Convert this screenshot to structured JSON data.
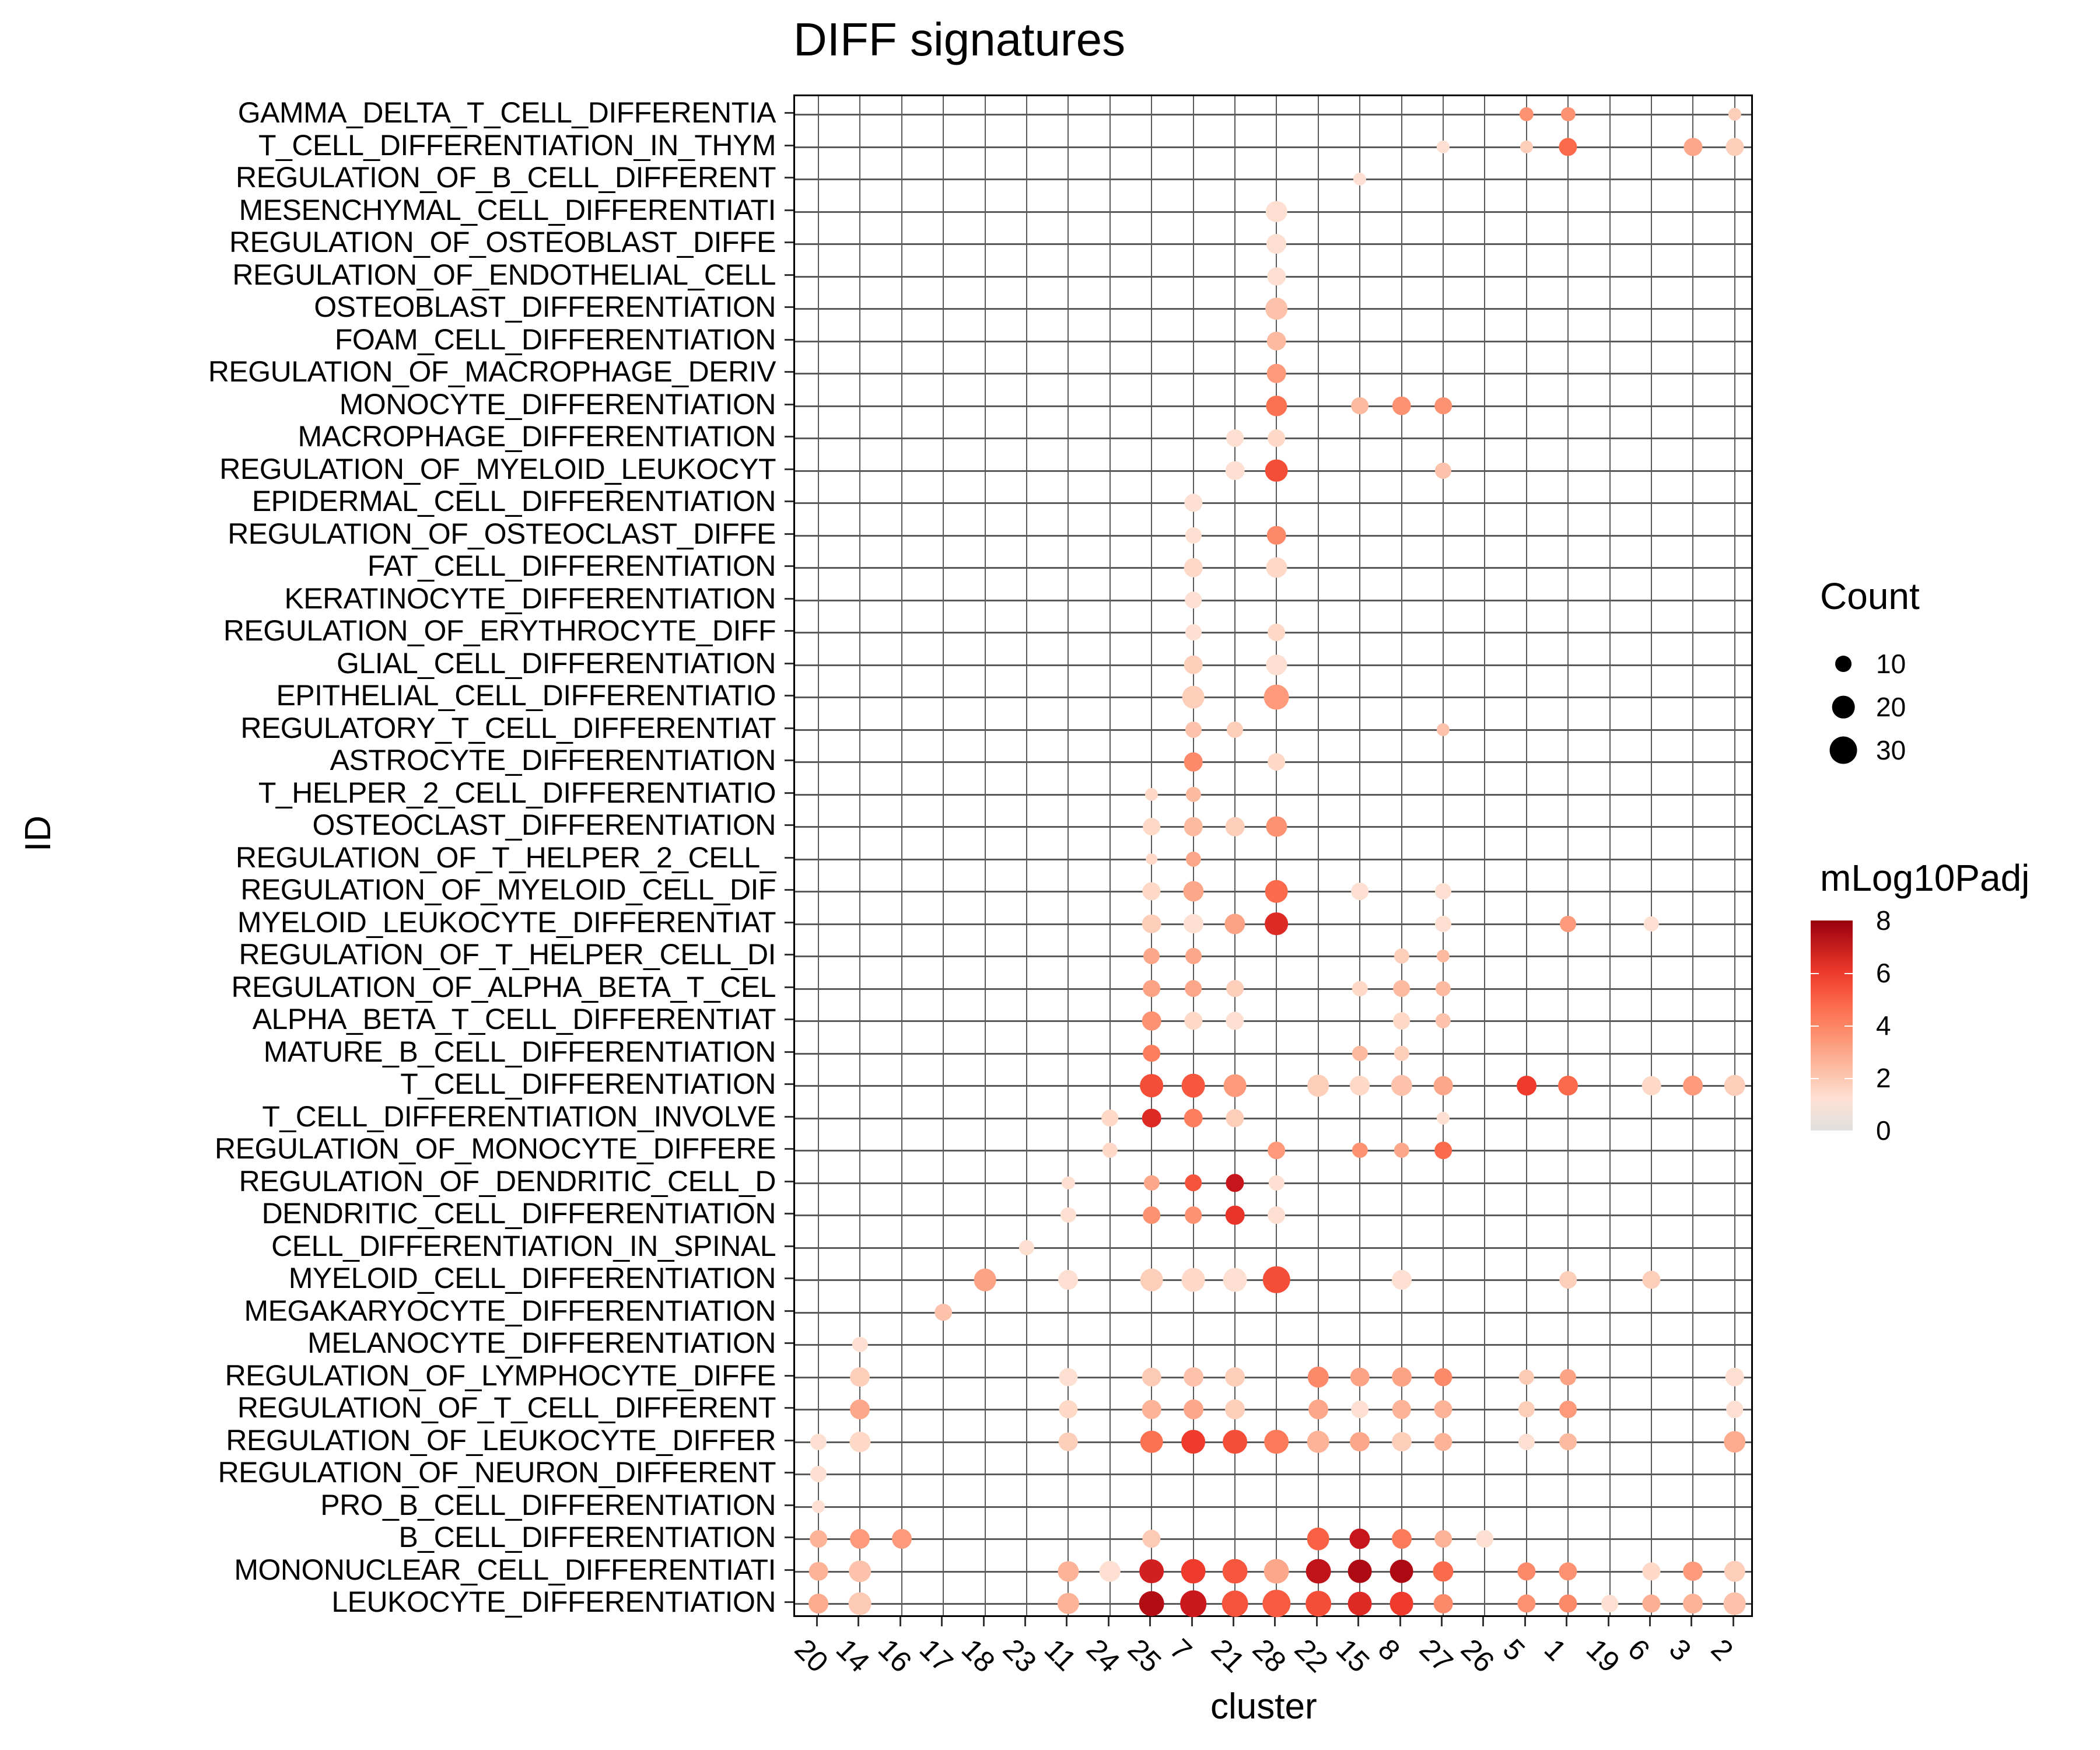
{
  "chart_data": {
    "type": "scatter",
    "title": "DIFF signatures",
    "xlabel": "cluster",
    "ylabel": "ID",
    "categories_x": [
      "20",
      "14",
      "16",
      "17",
      "18",
      "23",
      "11",
      "24",
      "25",
      "7",
      "21",
      "28",
      "22",
      "15",
      "8",
      "27",
      "26",
      "5",
      "1",
      "19",
      "6",
      "3",
      "2"
    ],
    "categories_y": [
      "GAMMA_DELTA_T_CELL_DIFFERENTIA",
      "T_CELL_DIFFERENTIATION_IN_THYM",
      "REGULATION_OF_B_CELL_DIFFERENT",
      "MESENCHYMAL_CELL_DIFFERENTIATI",
      "REGULATION_OF_OSTEOBLAST_DIFFE",
      "REGULATION_OF_ENDOTHELIAL_CELL",
      "OSTEOBLAST_DIFFERENTIATION",
      "FOAM_CELL_DIFFERENTIATION",
      "REGULATION_OF_MACROPHAGE_DERIV",
      "MONOCYTE_DIFFERENTIATION",
      "MACROPHAGE_DIFFERENTIATION",
      "REGULATION_OF_MYELOID_LEUKOCYT",
      "EPIDERMAL_CELL_DIFFERENTIATION",
      "REGULATION_OF_OSTEOCLAST_DIFFE",
      "FAT_CELL_DIFFERENTIATION",
      "KERATINOCYTE_DIFFERENTIATION",
      "REGULATION_OF_ERYTHROCYTE_DIFF",
      "GLIAL_CELL_DIFFERENTIATION",
      "EPITHELIAL_CELL_DIFFERENTIATIO",
      "REGULATORY_T_CELL_DIFFERENTIAT",
      "ASTROCYTE_DIFFERENTIATION",
      "T_HELPER_2_CELL_DIFFERENTIATIO",
      "OSTEOCLAST_DIFFERENTIATION",
      "REGULATION_OF_T_HELPER_2_CELL_",
      "REGULATION_OF_MYELOID_CELL_DIF",
      "MYELOID_LEUKOCYTE_DIFFERENTIAT",
      "REGULATION_OF_T_HELPER_CELL_DI",
      "REGULATION_OF_ALPHA_BETA_T_CEL",
      "ALPHA_BETA_T_CELL_DIFFERENTIAT",
      "MATURE_B_CELL_DIFFERENTIATION",
      "T_CELL_DIFFERENTIATION",
      "T_CELL_DIFFERENTIATION_INVOLVE",
      "REGULATION_OF_MONOCYTE_DIFFERE",
      "REGULATION_OF_DENDRITIC_CELL_D",
      "DENDRITIC_CELL_DIFFERENTIATION",
      "CELL_DIFFERENTIATION_IN_SPINAL",
      "MYELOID_CELL_DIFFERENTIATION",
      "MEGAKARYOCYTE_DIFFERENTIATION",
      "MELANOCYTE_DIFFERENTIATION",
      "REGULATION_OF_LYMPHOCYTE_DIFFE",
      "REGULATION_OF_T_CELL_DIFFERENT",
      "REGULATION_OF_LEUKOCYTE_DIFFER",
      "REGULATION_OF_NEURON_DIFFERENT",
      "PRO_B_CELL_DIFFERENTIATION",
      "B_CELL_DIFFERENTIATION",
      "MONONUCLEAR_CELL_DIFFERENTIATI",
      "LEUKOCYTE_DIFFERENTIATION"
    ],
    "size_legend": {
      "title": "Count",
      "values": [
        10,
        20,
        30
      ]
    },
    "color_legend": {
      "title": "mLog10Padj",
      "ticks": [
        0,
        2,
        4,
        6,
        8
      ],
      "low_color": "#e0e0e0",
      "high_color": "#99000d"
    },
    "points_format": "[row_index, cluster, count, mLog10Padj]",
    "points": [
      [
        0,
        "5",
        4,
        3
      ],
      [
        0,
        "1",
        4,
        3
      ],
      [
        0,
        "2",
        3,
        1.5
      ],
      [
        1,
        "27",
        3,
        1
      ],
      [
        1,
        "5",
        3,
        1.5
      ],
      [
        1,
        "1",
        8,
        4
      ],
      [
        1,
        "3",
        8,
        2.5
      ],
      [
        1,
        "2",
        8,
        1.5
      ],
      [
        2,
        "15",
        3,
        1
      ],
      [
        3,
        "28",
        12,
        1
      ],
      [
        4,
        "28",
        10,
        1
      ],
      [
        5,
        "28",
        8,
        1
      ],
      [
        6,
        "28",
        13,
        1.8
      ],
      [
        7,
        "28",
        9,
        2
      ],
      [
        8,
        "28",
        9,
        2.8
      ],
      [
        9,
        "28",
        11,
        3.8
      ],
      [
        9,
        "15",
        7,
        2
      ],
      [
        9,
        "8",
        9,
        3
      ],
      [
        9,
        "27",
        7,
        3
      ],
      [
        10,
        "21",
        7,
        1
      ],
      [
        10,
        "28",
        7,
        1.2
      ],
      [
        11,
        "21",
        9,
        1
      ],
      [
        11,
        "28",
        14,
        4.6
      ],
      [
        11,
        "27",
        6,
        1.8
      ],
      [
        12,
        "7",
        8,
        1
      ],
      [
        13,
        "7",
        6,
        1
      ],
      [
        13,
        "28",
        9,
        3.2
      ],
      [
        14,
        "7",
        9,
        1.2
      ],
      [
        14,
        "28",
        11,
        1.2
      ],
      [
        15,
        "7",
        7,
        1
      ],
      [
        16,
        "7",
        6,
        1
      ],
      [
        16,
        "28",
        7,
        1.2
      ],
      [
        17,
        "7",
        9,
        1.5
      ],
      [
        17,
        "28",
        11,
        1
      ],
      [
        18,
        "7",
        14,
        1.5
      ],
      [
        18,
        "28",
        18,
        2.8
      ],
      [
        19,
        "7",
        6,
        1.8
      ],
      [
        19,
        "21",
        6,
        1.5
      ],
      [
        19,
        "27",
        3,
        1.8
      ],
      [
        20,
        "7",
        9,
        3.2
      ],
      [
        20,
        "28",
        7,
        1.2
      ],
      [
        21,
        "25",
        3,
        1.2
      ],
      [
        21,
        "7",
        5,
        2
      ],
      [
        22,
        "25",
        7,
        1.2
      ],
      [
        22,
        "7",
        9,
        2
      ],
      [
        22,
        "21",
        9,
        1.5
      ],
      [
        22,
        "28",
        11,
        3
      ],
      [
        23,
        "25",
        2,
        1.2
      ],
      [
        23,
        "7",
        5,
        2.5
      ],
      [
        24,
        "25",
        8,
        1.2
      ],
      [
        24,
        "7",
        11,
        2.5
      ],
      [
        24,
        "28",
        14,
        4
      ],
      [
        24,
        "15",
        7,
        1
      ],
      [
        24,
        "27",
        6,
        1
      ],
      [
        25,
        "25",
        9,
        1.5
      ],
      [
        25,
        "7",
        10,
        1
      ],
      [
        25,
        "21",
        11,
        2.6
      ],
      [
        25,
        "28",
        15,
        5.5
      ],
      [
        25,
        "27",
        6,
        1
      ],
      [
        25,
        "1",
        6,
        2.8
      ],
      [
        25,
        "6",
        5,
        1
      ],
      [
        26,
        "25",
        6,
        2.5
      ],
      [
        26,
        "7",
        6,
        2.5
      ],
      [
        26,
        "8",
        5,
        1.5
      ],
      [
        26,
        "27",
        3,
        2
      ],
      [
        27,
        "25",
        7,
        2.6
      ],
      [
        27,
        "7",
        7,
        2.5
      ],
      [
        27,
        "21",
        7,
        1.5
      ],
      [
        27,
        "15",
        5,
        1.2
      ],
      [
        27,
        "8",
        7,
        2
      ],
      [
        27,
        "27",
        5,
        2
      ],
      [
        28,
        "25",
        9,
        3
      ],
      [
        28,
        "7",
        8,
        1.2
      ],
      [
        28,
        "21",
        8,
        1
      ],
      [
        28,
        "8",
        7,
        1.2
      ],
      [
        28,
        "27",
        5,
        1.8
      ],
      [
        29,
        "25",
        7,
        3.5
      ],
      [
        29,
        "15",
        5,
        2
      ],
      [
        29,
        "8",
        5,
        1.5
      ],
      [
        30,
        "25",
        15,
        4.6
      ],
      [
        30,
        "7",
        16,
        4.4
      ],
      [
        30,
        "21",
        14,
        2.8
      ],
      [
        30,
        "22",
        13,
        1.5
      ],
      [
        30,
        "15",
        10,
        1.2
      ],
      [
        30,
        "8",
        12,
        1.8
      ],
      [
        30,
        "27",
        9,
        2.5
      ],
      [
        30,
        "5",
        10,
        5
      ],
      [
        30,
        "1",
        10,
        4
      ],
      [
        30,
        "6",
        9,
        1.2
      ],
      [
        30,
        "3",
        10,
        2.8
      ],
      [
        30,
        "2",
        12,
        1.5
      ],
      [
        31,
        "24",
        7,
        1.2
      ],
      [
        31,
        "25",
        9,
        5.5
      ],
      [
        31,
        "7",
        9,
        3.5
      ],
      [
        31,
        "21",
        8,
        1.5
      ],
      [
        31,
        "27",
        3,
        1
      ],
      [
        32,
        "24",
        5,
        1.2
      ],
      [
        32,
        "28",
        7,
        2.8
      ],
      [
        32,
        "15",
        5,
        3
      ],
      [
        32,
        "8",
        5,
        2.5
      ],
      [
        32,
        "27",
        7,
        4
      ],
      [
        33,
        "11",
        3,
        1
      ],
      [
        33,
        "25",
        5,
        2.5
      ],
      [
        33,
        "7",
        7,
        4.5
      ],
      [
        33,
        "21",
        8,
        6.2
      ],
      [
        33,
        "28",
        5,
        1
      ],
      [
        34,
        "11",
        5,
        1
      ],
      [
        34,
        "25",
        7,
        3
      ],
      [
        34,
        "7",
        7,
        3
      ],
      [
        34,
        "21",
        9,
        5.2
      ],
      [
        34,
        "28",
        7,
        1
      ],
      [
        35,
        "23",
        5,
        1
      ],
      [
        36,
        "18",
        14,
        2.6
      ],
      [
        36,
        "11",
        10,
        1
      ],
      [
        36,
        "25",
        14,
        1.5
      ],
      [
        36,
        "7",
        16,
        1.2
      ],
      [
        36,
        "21",
        16,
        1
      ],
      [
        36,
        "28",
        22,
        4.6
      ],
      [
        36,
        "8",
        10,
        1
      ],
      [
        36,
        "1",
        7,
        1.5
      ],
      [
        36,
        "6",
        8,
        1.5
      ],
      [
        37,
        "17",
        7,
        1.8
      ],
      [
        38,
        "14",
        5,
        1
      ],
      [
        39,
        "14",
        10,
        1.5
      ],
      [
        39,
        "11",
        8,
        1
      ],
      [
        39,
        "25",
        9,
        1.6
      ],
      [
        39,
        "7",
        10,
        1.8
      ],
      [
        39,
        "21",
        10,
        1.5
      ],
      [
        39,
        "22",
        12,
        3.2
      ],
      [
        39,
        "15",
        9,
        2.6
      ],
      [
        39,
        "8",
        10,
        2.6
      ],
      [
        39,
        "27",
        8,
        3.2
      ],
      [
        39,
        "5",
        5,
        1.6
      ],
      [
        39,
        "1",
        6,
        2.6
      ],
      [
        39,
        "2",
        9,
        1
      ],
      [
        40,
        "14",
        10,
        2.5
      ],
      [
        40,
        "11",
        8,
        1.2
      ],
      [
        40,
        "25",
        9,
        2.2
      ],
      [
        40,
        "7",
        10,
        2.5
      ],
      [
        40,
        "21",
        10,
        1.5
      ],
      [
        40,
        "22",
        10,
        2.5
      ],
      [
        40,
        "15",
        7,
        1
      ],
      [
        40,
        "8",
        9,
        2.2
      ],
      [
        40,
        "27",
        8,
        2.2
      ],
      [
        40,
        "5",
        6,
        1.5
      ],
      [
        40,
        "1",
        7,
        2.8
      ],
      [
        40,
        "2",
        7,
        1
      ],
      [
        41,
        "20",
        6,
        1
      ],
      [
        41,
        "14",
        11,
        1.2
      ],
      [
        41,
        "11",
        9,
        1.5
      ],
      [
        41,
        "25",
        14,
        3.8
      ],
      [
        41,
        "7",
        17,
        5
      ],
      [
        41,
        "21",
        17,
        4.6
      ],
      [
        41,
        "28",
        17,
        3.6
      ],
      [
        41,
        "22",
        14,
        2.2
      ],
      [
        41,
        "15",
        10,
        2.5
      ],
      [
        41,
        "8",
        10,
        1.5
      ],
      [
        41,
        "27",
        8,
        2.2
      ],
      [
        41,
        "5",
        6,
        1
      ],
      [
        41,
        "1",
        7,
        2
      ],
      [
        41,
        "2",
        13,
        2.4
      ],
      [
        42,
        "20",
        6,
        1
      ],
      [
        43,
        "20",
        3,
        1
      ],
      [
        44,
        "20",
        7,
        2.2
      ],
      [
        44,
        "14",
        10,
        2.8
      ],
      [
        44,
        "16",
        10,
        2.8
      ],
      [
        44,
        "25",
        8,
        1.6
      ],
      [
        44,
        "22",
        14,
        4.2
      ],
      [
        44,
        "15",
        11,
        6.2
      ],
      [
        44,
        "8",
        10,
        3.6
      ],
      [
        44,
        "27",
        7,
        2.2
      ],
      [
        44,
        "26",
        7,
        1
      ],
      [
        45,
        "20",
        9,
        2.2
      ],
      [
        45,
        "14",
        13,
        1.8
      ],
      [
        45,
        "11",
        11,
        2.2
      ],
      [
        45,
        "24",
        12,
        1
      ],
      [
        45,
        "25",
        17,
        5.8
      ],
      [
        45,
        "7",
        18,
        5
      ],
      [
        45,
        "21",
        18,
        4.4
      ],
      [
        45,
        "28",
        18,
        2.5
      ],
      [
        45,
        "22",
        18,
        6.4
      ],
      [
        45,
        "15",
        16,
        7.2
      ],
      [
        45,
        "8",
        16,
        7.2
      ],
      [
        45,
        "27",
        11,
        4
      ],
      [
        45,
        "5",
        8,
        3.2
      ],
      [
        45,
        "1",
        8,
        3
      ],
      [
        45,
        "6",
        8,
        1.2
      ],
      [
        45,
        "3",
        10,
        2.8
      ],
      [
        45,
        "2",
        12,
        1.5
      ],
      [
        46,
        "20",
        10,
        2.4
      ],
      [
        46,
        "14",
        14,
        1.6
      ],
      [
        46,
        "11",
        12,
        2.2
      ],
      [
        46,
        "25",
        18,
        7
      ],
      [
        46,
        "7",
        21,
        6
      ],
      [
        46,
        "21",
        20,
        4.5
      ],
      [
        46,
        "28",
        23,
        4.3
      ],
      [
        46,
        "22",
        19,
        4.6
      ],
      [
        46,
        "15",
        16,
        5.5
      ],
      [
        46,
        "8",
        16,
        5
      ],
      [
        46,
        "27",
        9,
        3.2
      ],
      [
        46,
        "5",
        8,
        3
      ],
      [
        46,
        "1",
        8,
        3.2
      ],
      [
        46,
        "19",
        7,
        1
      ],
      [
        46,
        "6",
        8,
        2.3
      ],
      [
        46,
        "3",
        10,
        2.2
      ],
      [
        46,
        "2",
        14,
        1.8
      ]
    ]
  }
}
